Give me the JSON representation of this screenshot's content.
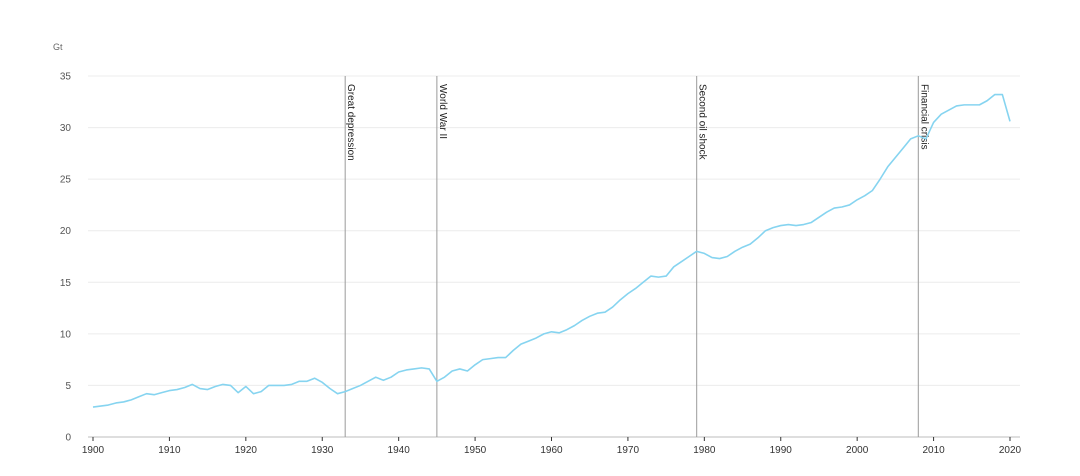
{
  "chart_data": {
    "type": "line",
    "ylabel": "Gt",
    "xlim": [
      1900,
      2020
    ],
    "ylim": [
      0,
      35
    ],
    "yticks": [
      0,
      5,
      10,
      15,
      20,
      25,
      30,
      35
    ],
    "xticks": [
      1900,
      1910,
      1920,
      1930,
      1940,
      1950,
      1960,
      1970,
      1980,
      1990,
      2000,
      2010,
      2020
    ],
    "grid": true,
    "line_color": "#86d4f0",
    "event_line_color": "#9a9a9a",
    "events": [
      {
        "year": 1933,
        "label": "Great depression"
      },
      {
        "year": 1945,
        "label": "World War II"
      },
      {
        "year": 1979,
        "label": "Second oil shock"
      },
      {
        "year": 2008,
        "label": "Financial crisis"
      }
    ],
    "series": [
      {
        "x": [
          1900,
          1901,
          1902,
          1903,
          1904,
          1905,
          1906,
          1907,
          1908,
          1909,
          1910,
          1911,
          1912,
          1913,
          1914,
          1915,
          1916,
          1917,
          1918,
          1919,
          1920,
          1921,
          1922,
          1923,
          1924,
          1925,
          1926,
          1927,
          1928,
          1929,
          1930,
          1931,
          1932,
          1933,
          1934,
          1935,
          1936,
          1937,
          1938,
          1939,
          1940,
          1941,
          1942,
          1943,
          1944,
          1945,
          1946,
          1947,
          1948,
          1949,
          1950,
          1951,
          1952,
          1953,
          1954,
          1955,
          1956,
          1957,
          1958,
          1959,
          1960,
          1961,
          1962,
          1963,
          1964,
          1965,
          1966,
          1967,
          1968,
          1969,
          1970,
          1971,
          1972,
          1973,
          1974,
          1975,
          1976,
          1977,
          1978,
          1979,
          1980,
          1981,
          1982,
          1983,
          1984,
          1985,
          1986,
          1987,
          1988,
          1989,
          1990,
          1991,
          1992,
          1993,
          1994,
          1995,
          1996,
          1997,
          1998,
          1999,
          2000,
          2001,
          2002,
          2003,
          2004,
          2005,
          2006,
          2007,
          2008,
          2009,
          2010,
          2011,
          2012,
          2013,
          2014,
          2015,
          2016,
          2017,
          2018,
          2019,
          2020
        ],
        "values": [
          2.9,
          3.0,
          3.1,
          3.3,
          3.4,
          3.6,
          3.9,
          4.2,
          4.1,
          4.3,
          4.5,
          4.6,
          4.8,
          5.1,
          4.7,
          4.6,
          4.9,
          5.1,
          5.0,
          4.3,
          4.9,
          4.2,
          4.4,
          5.0,
          5.0,
          5.0,
          5.1,
          5.4,
          5.4,
          5.7,
          5.3,
          4.7,
          4.2,
          4.4,
          4.7,
          5.0,
          5.4,
          5.8,
          5.5,
          5.8,
          6.3,
          6.5,
          6.6,
          6.7,
          6.6,
          5.4,
          5.8,
          6.4,
          6.6,
          6.4,
          7.0,
          7.5,
          7.6,
          7.7,
          7.7,
          8.4,
          9.0,
          9.3,
          9.6,
          10.0,
          10.2,
          10.1,
          10.4,
          10.8,
          11.3,
          11.7,
          12.0,
          12.1,
          12.6,
          13.3,
          13.9,
          14.4,
          15.0,
          15.6,
          15.5,
          15.6,
          16.5,
          17.0,
          17.5,
          18.0,
          17.8,
          17.4,
          17.3,
          17.5,
          18.0,
          18.4,
          18.7,
          19.3,
          20.0,
          20.3,
          20.5,
          20.6,
          20.5,
          20.6,
          20.8,
          21.3,
          21.8,
          22.2,
          22.3,
          22.5,
          23.0,
          23.4,
          23.9,
          25.0,
          26.2,
          27.1,
          28.0,
          28.9,
          29.2,
          28.9,
          30.5,
          31.3,
          31.7,
          32.1,
          32.2,
          32.2,
          32.2,
          32.6,
          33.2,
          33.2,
          30.6
        ]
      }
    ]
  }
}
